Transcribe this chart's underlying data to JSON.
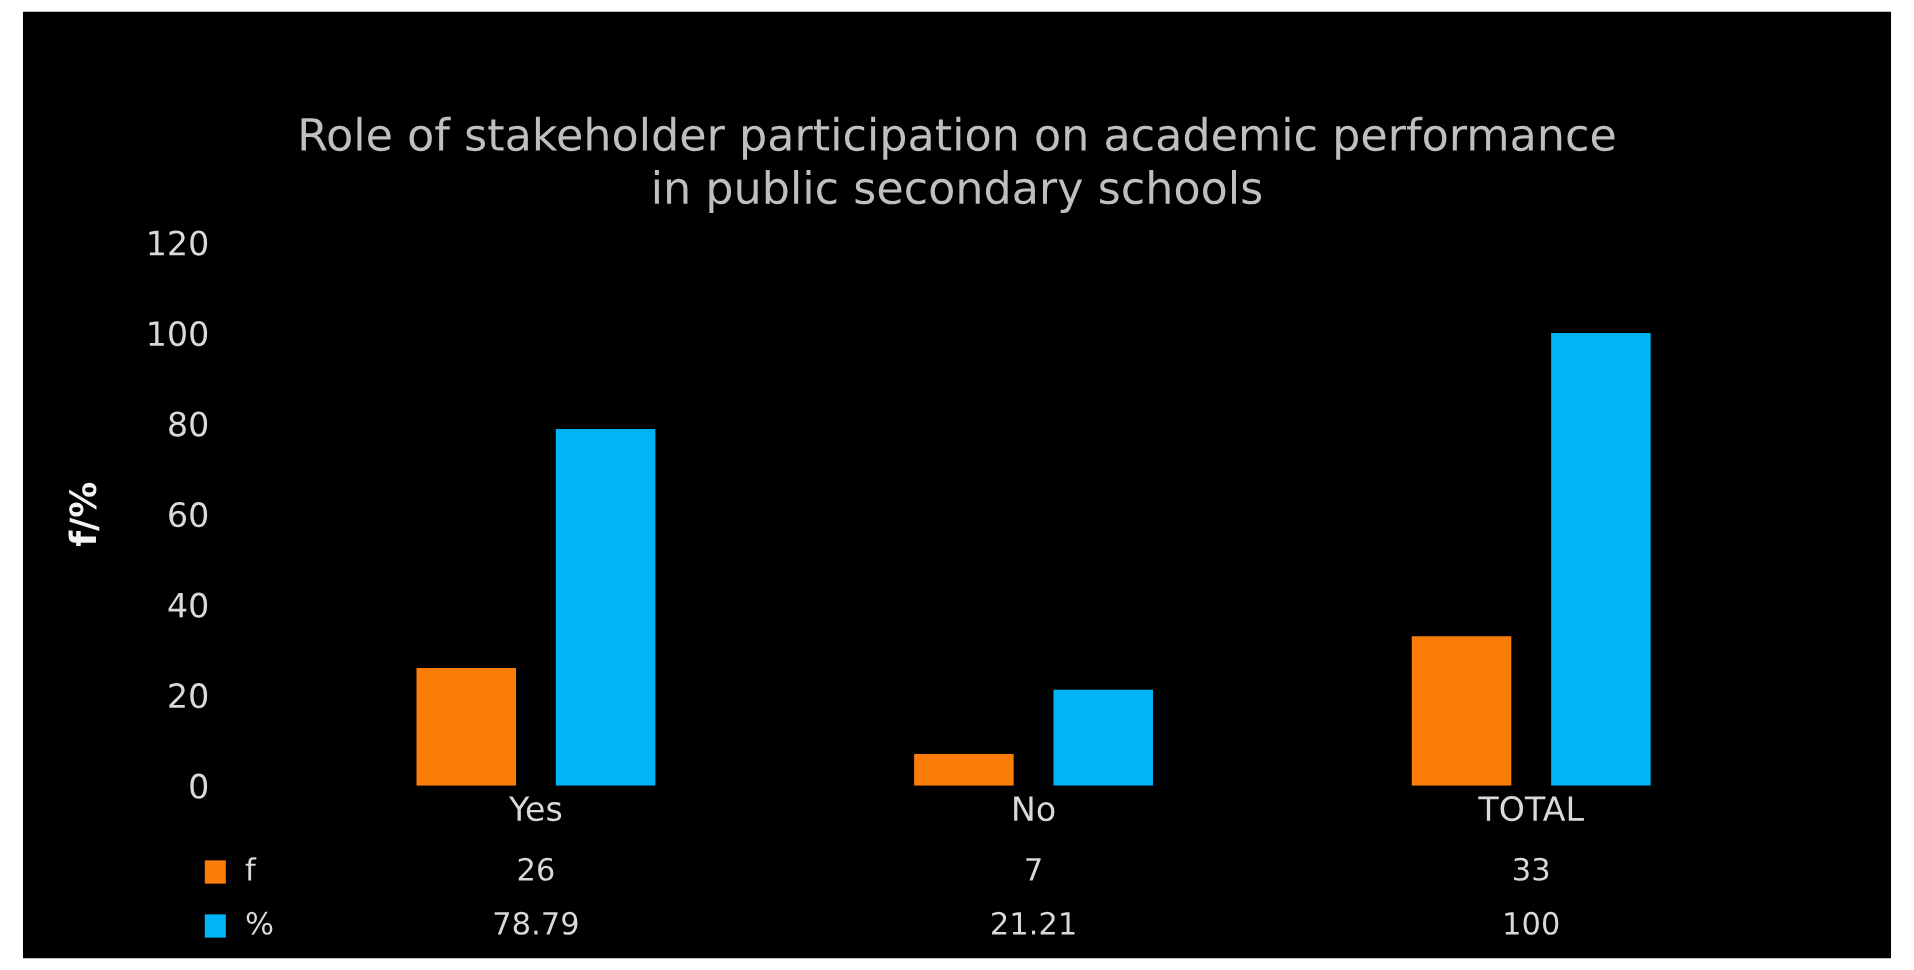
{
  "chart_data": {
    "type": "bar",
    "title": "Role of stakeholder participation on academic performance\nin public secondary schools",
    "ylabel": "f/%",
    "categories": [
      "Yes",
      "No",
      "TOTAL"
    ],
    "series": [
      {
        "name": "f",
        "color": "#fa7d0a",
        "values": [
          26,
          7,
          33
        ]
      },
      {
        "name": "%",
        "color": "#00b4f5",
        "values": [
          78.79,
          21.21,
          100
        ]
      }
    ],
    "ylim": [
      0,
      120
    ],
    "yticks": [
      0,
      20,
      40,
      60,
      80,
      100,
      120
    ],
    "grid": false,
    "legend": "bottom",
    "data_labels": true
  }
}
